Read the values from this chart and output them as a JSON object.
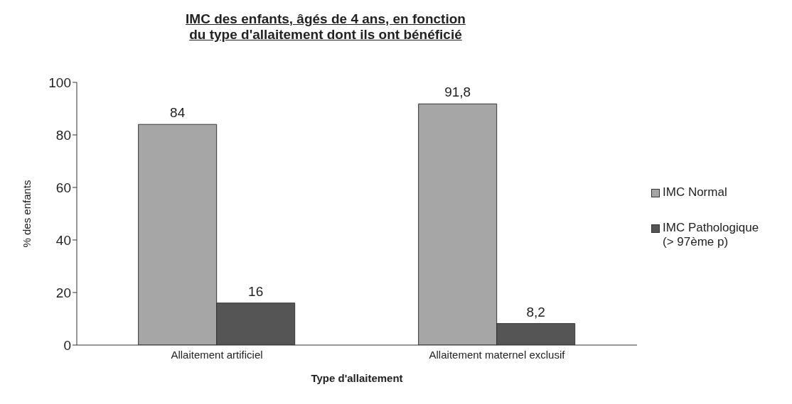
{
  "chart_data": {
    "type": "bar",
    "title": "IMC des enfants, âgés de 4 ans, en fonction\ndu type d'allaitement dont ils ont bénéficié",
    "xlabel": "Type d'allaitement",
    "ylabel": "% des enfants",
    "categories": [
      "Allaitement artificiel",
      "Allaitement maternel exclusif"
    ],
    "series": [
      {
        "name": "IMC Normal",
        "color": "#a6a6a6",
        "values": [
          84,
          91.8
        ],
        "value_labels": [
          "84",
          "91,8"
        ]
      },
      {
        "name": "IMC Pathologique (> 97ème p)",
        "color": "#555555",
        "values": [
          16,
          8.2
        ],
        "value_labels": [
          "16",
          "8,2"
        ]
      }
    ],
    "ylim": [
      0,
      100
    ],
    "yticks": [
      0,
      20,
      40,
      60,
      80,
      100
    ],
    "grid": false,
    "legend": "right"
  }
}
